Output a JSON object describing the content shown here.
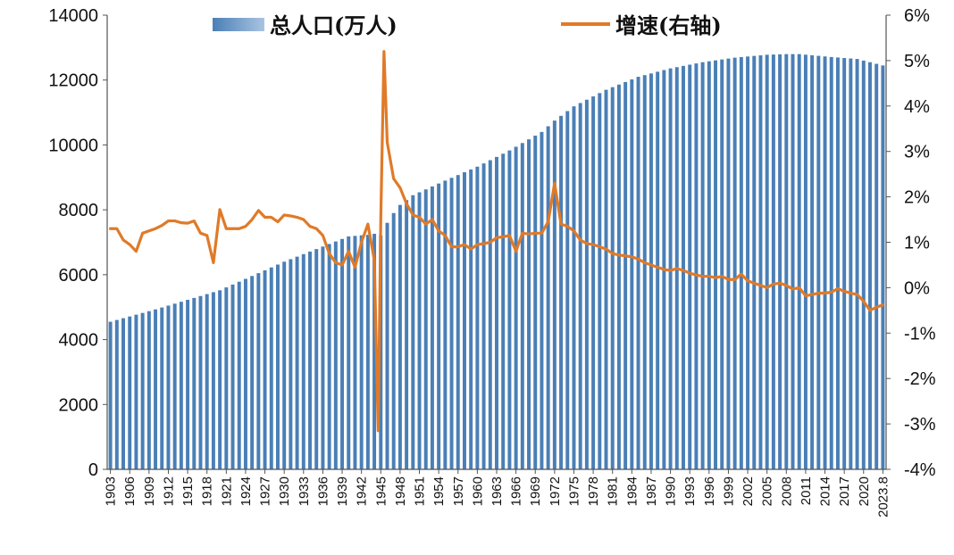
{
  "chart_data": {
    "type": "bar+line",
    "title": "",
    "series": [
      {
        "name": "总人口(万人)",
        "type": "bar",
        "axis": "left",
        "color": "#4a7fb6"
      },
      {
        "name": "增速(右轴)",
        "type": "line",
        "axis": "right",
        "color": "#e07a28"
      }
    ],
    "x_start_year": 1903,
    "x_end_year": 2023,
    "x_tick_labels": [
      "1903",
      "1906",
      "1909",
      "1912",
      "1915",
      "1918",
      "1921",
      "1924",
      "1927",
      "1930",
      "1933",
      "1936",
      "1939",
      "1942",
      "1945",
      "1948",
      "1951",
      "1954",
      "1957",
      "1960",
      "1963",
      "1966",
      "1969",
      "1972",
      "1975",
      "1978",
      "1981",
      "1984",
      "1987",
      "1990",
      "1993",
      "1996",
      "1999",
      "2002",
      "2005",
      "2008",
      "2011",
      "2014",
      "2017",
      "2020",
      "2023.8"
    ],
    "left_axis": {
      "min": 0,
      "max": 14000,
      "ticks": [
        "0",
        "2000",
        "4000",
        "6000",
        "8000",
        "10000",
        "12000",
        "14000"
      ]
    },
    "right_axis": {
      "min": -4,
      "max": 6,
      "ticks": [
        "-4%",
        "-3%",
        "-2%",
        "-1%",
        "0%",
        "1%",
        "2%",
        "3%",
        "4%",
        "5%",
        "6%"
      ]
    },
    "population_keypoints": [
      [
        1903,
        4550
      ],
      [
        1910,
        4930
      ],
      [
        1920,
        5520
      ],
      [
        1930,
        6400
      ],
      [
        1940,
        7180
      ],
      [
        1943,
        7230
      ],
      [
        1944,
        7260
      ],
      [
        1945,
        7210
      ],
      [
        1946,
        7600
      ],
      [
        1947,
        7900
      ],
      [
        1948,
        8150
      ],
      [
        1950,
        8450
      ],
      [
        1955,
        8900
      ],
      [
        1960,
        9330
      ],
      [
        1965,
        9830
      ],
      [
        1970,
        10400
      ],
      [
        1972,
        10750
      ],
      [
        1975,
        11190
      ],
      [
        1980,
        11700
      ],
      [
        1985,
        12100
      ],
      [
        1990,
        12360
      ],
      [
        1995,
        12550
      ],
      [
        2000,
        12690
      ],
      [
        2005,
        12780
      ],
      [
        2008,
        12800
      ],
      [
        2010,
        12800
      ],
      [
        2015,
        12710
      ],
      [
        2019,
        12650
      ],
      [
        2023,
        12450
      ]
    ],
    "growth_rate_keypoints": [
      [
        1903,
        1.3
      ],
      [
        1904,
        1.3
      ],
      [
        1905,
        1.05
      ],
      [
        1906,
        0.95
      ],
      [
        1907,
        0.8
      ],
      [
        1908,
        1.2
      ],
      [
        1909,
        1.25
      ],
      [
        1910,
        1.3
      ],
      [
        1911,
        1.37
      ],
      [
        1912,
        1.47
      ],
      [
        1913,
        1.47
      ],
      [
        1914,
        1.43
      ],
      [
        1915,
        1.42
      ],
      [
        1916,
        1.47
      ],
      [
        1917,
        1.2
      ],
      [
        1918,
        1.15
      ],
      [
        1919,
        0.55
      ],
      [
        1920,
        1.72
      ],
      [
        1921,
        1.3
      ],
      [
        1922,
        1.3
      ],
      [
        1923,
        1.3
      ],
      [
        1924,
        1.35
      ],
      [
        1925,
        1.5
      ],
      [
        1926,
        1.7
      ],
      [
        1927,
        1.55
      ],
      [
        1928,
        1.55
      ],
      [
        1929,
        1.45
      ],
      [
        1930,
        1.6
      ],
      [
        1931,
        1.58
      ],
      [
        1932,
        1.55
      ],
      [
        1933,
        1.5
      ],
      [
        1934,
        1.35
      ],
      [
        1935,
        1.3
      ],
      [
        1936,
        1.15
      ],
      [
        1937,
        0.75
      ],
      [
        1938,
        0.55
      ],
      [
        1939,
        0.5
      ],
      [
        1940,
        0.8
      ],
      [
        1941,
        0.45
      ],
      [
        1942,
        1.0
      ],
      [
        1943,
        1.4
      ],
      [
        1944,
        0.6
      ],
      [
        1944.6,
        -3.15
      ],
      [
        1945,
        1.5
      ],
      [
        1945.5,
        5.2
      ],
      [
        1946,
        3.2
      ],
      [
        1947,
        2.4
      ],
      [
        1948,
        2.2
      ],
      [
        1949,
        1.85
      ],
      [
        1950,
        1.6
      ],
      [
        1951,
        1.55
      ],
      [
        1952,
        1.4
      ],
      [
        1953,
        1.5
      ],
      [
        1954,
        1.25
      ],
      [
        1955,
        1.15
      ],
      [
        1956,
        0.9
      ],
      [
        1957,
        0.9
      ],
      [
        1958,
        0.95
      ],
      [
        1959,
        0.85
      ],
      [
        1960,
        0.95
      ],
      [
        1961,
        0.97
      ],
      [
        1962,
        1.0
      ],
      [
        1963,
        1.1
      ],
      [
        1964,
        1.12
      ],
      [
        1965,
        1.15
      ],
      [
        1966,
        0.8
      ],
      [
        1967,
        1.2
      ],
      [
        1968,
        1.18
      ],
      [
        1969,
        1.2
      ],
      [
        1970,
        1.2
      ],
      [
        1971,
        1.45
      ],
      [
        1972,
        2.3
      ],
      [
        1973,
        1.4
      ],
      [
        1974,
        1.35
      ],
      [
        1975,
        1.25
      ],
      [
        1976,
        1.05
      ],
      [
        1977,
        0.97
      ],
      [
        1978,
        0.95
      ],
      [
        1979,
        0.9
      ],
      [
        1980,
        0.85
      ],
      [
        1981,
        0.75
      ],
      [
        1982,
        0.72
      ],
      [
        1983,
        0.7
      ],
      [
        1984,
        0.68
      ],
      [
        1985,
        0.63
      ],
      [
        1986,
        0.55
      ],
      [
        1987,
        0.5
      ],
      [
        1988,
        0.45
      ],
      [
        1989,
        0.4
      ],
      [
        1990,
        0.38
      ],
      [
        1991,
        0.42
      ],
      [
        1992,
        0.38
      ],
      [
        1993,
        0.32
      ],
      [
        1994,
        0.28
      ],
      [
        1995,
        0.25
      ],
      [
        1996,
        0.25
      ],
      [
        1997,
        0.22
      ],
      [
        1998,
        0.25
      ],
      [
        1999,
        0.18
      ],
      [
        2000,
        0.18
      ],
      [
        2001,
        0.3
      ],
      [
        2002,
        0.15
      ],
      [
        2003,
        0.1
      ],
      [
        2004,
        0.05
      ],
      [
        2005,
        0.0
      ],
      [
        2006,
        0.08
      ],
      [
        2007,
        0.1
      ],
      [
        2008,
        0.05
      ],
      [
        2009,
        -0.03
      ],
      [
        2010,
        0.0
      ],
      [
        2011,
        -0.18
      ],
      [
        2012,
        -0.15
      ],
      [
        2013,
        -0.12
      ],
      [
        2014,
        -0.12
      ],
      [
        2015,
        -0.1
      ],
      [
        2016,
        -0.02
      ],
      [
        2017,
        -0.08
      ],
      [
        2018,
        -0.12
      ],
      [
        2019,
        -0.15
      ],
      [
        2020,
        -0.3
      ],
      [
        2021,
        -0.5
      ],
      [
        2022,
        -0.43
      ],
      [
        2023,
        -0.38
      ]
    ]
  }
}
